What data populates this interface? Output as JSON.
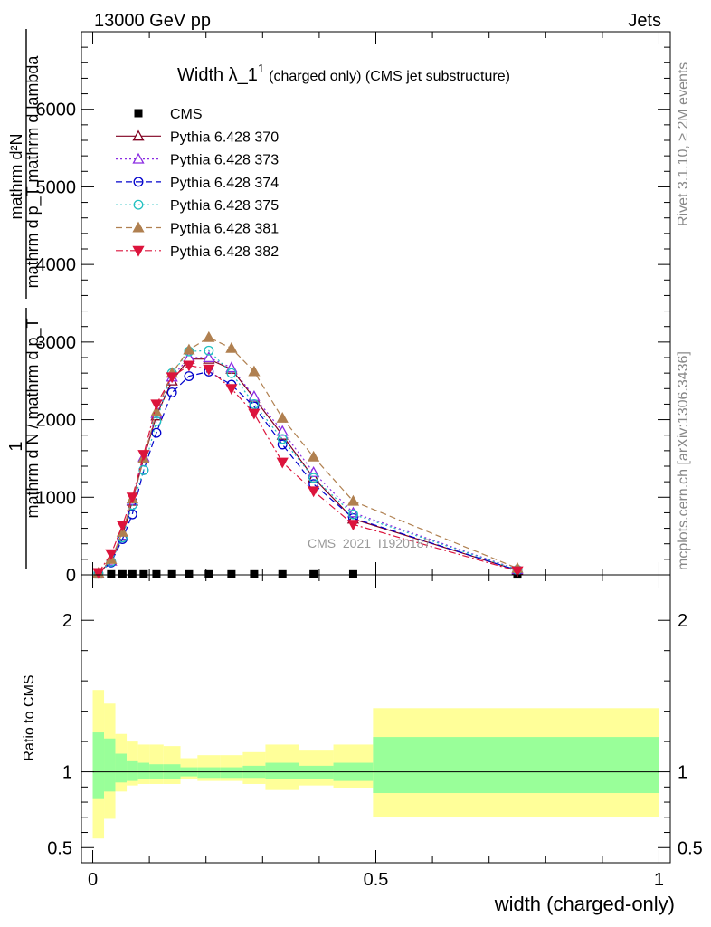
{
  "header": {
    "left": "13000 GeV pp",
    "right": "Jets"
  },
  "side_labels": {
    "rivet": "Rivet 3.1.10, ≥ 2M events",
    "mcplots": "mcplots.cern.ch [arXiv:1306.3436]"
  },
  "chart_data": [
    {
      "type": "line",
      "title": "Width λ_1",
      "title_sup": "1",
      "subtitle": "(charged only) (CMS jet substructure)",
      "ylabel_num": "mathrm d²N",
      "ylabel_den": "mathrm d p_T mathrm d lambda",
      "ylabel_prefix_num": "1",
      "ylabel_prefix_den": "mathrm d N / mathrm d p_T",
      "ylim": [
        0,
        7000
      ],
      "xlim": [
        -0.02,
        1.02
      ],
      "yticks": [
        0,
        1000,
        2000,
        3000,
        4000,
        5000,
        6000
      ],
      "ytick_labels": [
        "0",
        "1000",
        "2000",
        "3000",
        "4000",
        "5000",
        "6000"
      ],
      "watermark": "CMS_2021_I1920187",
      "legend_position": "top-left",
      "x": [
        0.01,
        0.0325,
        0.0525,
        0.07,
        0.09,
        0.1125,
        0.14,
        0.17,
        0.205,
        0.245,
        0.285,
        0.335,
        0.39,
        0.46,
        0.75
      ],
      "series": [
        {
          "name": "CMS",
          "color": "#000000",
          "marker": "square",
          "dash": "none",
          "values": [
            5,
            8,
            8,
            8,
            8,
            8,
            8,
            8,
            8,
            8,
            8,
            8,
            8,
            8,
            5
          ]
        },
        {
          "name": "Pythia 6.428 370",
          "color": "#800020",
          "marker": "triangle-open",
          "dash": "solid",
          "values": [
            20,
            180,
            500,
            950,
            1500,
            2050,
            2500,
            2780,
            2780,
            2650,
            2280,
            1800,
            1250,
            720,
            60
          ]
        },
        {
          "name": "Pythia 6.428 373",
          "color": "#8a2be2",
          "marker": "triangle-open",
          "dash": "dotted",
          "values": [
            20,
            180,
            510,
            960,
            1520,
            2080,
            2550,
            2800,
            2800,
            2670,
            2300,
            1850,
            1320,
            800,
            70
          ]
        },
        {
          "name": "Pythia 6.428 374",
          "color": "#0000cc",
          "marker": "circle-open",
          "dash": "dashed",
          "values": [
            18,
            160,
            460,
            780,
            1350,
            1830,
            2350,
            2560,
            2620,
            2450,
            2170,
            1680,
            1170,
            730,
            60
          ]
        },
        {
          "name": "Pythia 6.428 375",
          "color": "#20c0c0",
          "marker": "circle-open",
          "dash": "dotted",
          "values": [
            22,
            170,
            480,
            900,
            1350,
            1980,
            2600,
            2880,
            2890,
            2600,
            2200,
            1750,
            1250,
            780,
            65
          ]
        },
        {
          "name": "Pythia 6.428 381",
          "color": "#b08050",
          "marker": "triangle",
          "dash": "dashed",
          "values": [
            25,
            200,
            550,
            980,
            1500,
            2100,
            2600,
            2900,
            3060,
            2920,
            2620,
            2020,
            1520,
            950,
            85
          ]
        },
        {
          "name": "Pythia 6.428 382",
          "color": "#dc143c",
          "marker": "triangle-down",
          "dash": "dashdot",
          "values": [
            28,
            270,
            640,
            1000,
            1550,
            2200,
            2550,
            2700,
            2650,
            2400,
            2080,
            1450,
            1080,
            650,
            50
          ]
        }
      ]
    },
    {
      "type": "area",
      "ylabel": "Ratio to CMS",
      "xlabel": "width (charged-only)",
      "xlim": [
        -0.02,
        1.02
      ],
      "ylim": [
        0.4,
        2.3
      ],
      "xticks": [
        0,
        0.5,
        1
      ],
      "xtick_labels": [
        "0",
        "0.5",
        "1"
      ],
      "yticks": [
        0.5,
        1,
        2
      ],
      "ytick_labels": [
        "0.5",
        "1",
        "2"
      ],
      "bins": [
        {
          "x0": 0.0,
          "x1": 0.02,
          "stat_lo": 0.82,
          "stat_hi": 1.26,
          "tot_lo": 0.56,
          "tot_hi": 1.54
        },
        {
          "x0": 0.02,
          "x1": 0.04,
          "stat_lo": 0.87,
          "stat_hi": 1.22,
          "tot_lo": 0.69,
          "tot_hi": 1.45
        },
        {
          "x0": 0.04,
          "x1": 0.06,
          "stat_lo": 0.93,
          "stat_hi": 1.12,
          "tot_lo": 0.87,
          "tot_hi": 1.25
        },
        {
          "x0": 0.06,
          "x1": 0.08,
          "stat_lo": 0.94,
          "stat_hi": 1.07,
          "tot_lo": 0.91,
          "tot_hi": 1.2
        },
        {
          "x0": 0.08,
          "x1": 0.1,
          "stat_lo": 0.95,
          "stat_hi": 1.06,
          "tot_lo": 0.92,
          "tot_hi": 1.18
        },
        {
          "x0": 0.1,
          "x1": 0.125,
          "stat_lo": 0.95,
          "stat_hi": 1.05,
          "tot_lo": 0.92,
          "tot_hi": 1.18
        },
        {
          "x0": 0.125,
          "x1": 0.155,
          "stat_lo": 0.95,
          "stat_hi": 1.05,
          "tot_lo": 0.92,
          "tot_hi": 1.17
        },
        {
          "x0": 0.155,
          "x1": 0.185,
          "stat_lo": 0.97,
          "stat_hi": 1.03,
          "tot_lo": 0.95,
          "tot_hi": 1.09
        },
        {
          "x0": 0.185,
          "x1": 0.225,
          "stat_lo": 0.96,
          "stat_hi": 1.03,
          "tot_lo": 0.94,
          "tot_hi": 1.11
        },
        {
          "x0": 0.225,
          "x1": 0.265,
          "stat_lo": 0.96,
          "stat_hi": 1.03,
          "tot_lo": 0.94,
          "tot_hi": 1.11
        },
        {
          "x0": 0.265,
          "x1": 0.305,
          "stat_lo": 0.96,
          "stat_hi": 1.04,
          "tot_lo": 0.92,
          "tot_hi": 1.13
        },
        {
          "x0": 0.305,
          "x1": 0.365,
          "stat_lo": 0.95,
          "stat_hi": 1.06,
          "tot_lo": 0.88,
          "tot_hi": 1.18
        },
        {
          "x0": 0.365,
          "x1": 0.425,
          "stat_lo": 0.95,
          "stat_hi": 1.04,
          "tot_lo": 0.91,
          "tot_hi": 1.14
        },
        {
          "x0": 0.425,
          "x1": 0.495,
          "stat_lo": 0.94,
          "stat_hi": 1.06,
          "tot_lo": 0.89,
          "tot_hi": 1.18
        },
        {
          "x0": 0.495,
          "x1": 1.0,
          "stat_lo": 0.86,
          "stat_hi": 1.23,
          "tot_lo": 0.7,
          "tot_hi": 1.42
        }
      ]
    }
  ]
}
